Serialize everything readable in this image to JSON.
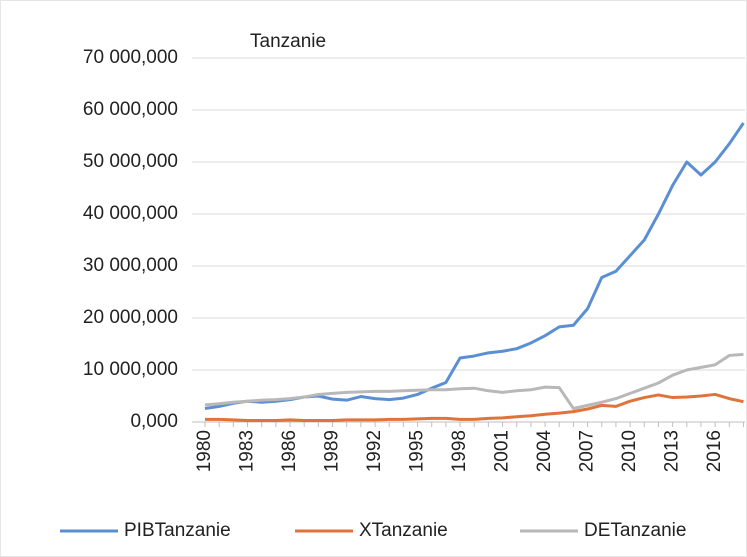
{
  "chart_data": {
    "type": "line",
    "title": "Tanzanie",
    "categories": [
      "1980",
      null,
      null,
      "1983",
      null,
      null,
      "1986",
      null,
      null,
      "1989",
      null,
      null,
      "1992",
      null,
      null,
      "1995",
      null,
      null,
      "1998",
      null,
      null,
      "2001",
      null,
      null,
      "2004",
      null,
      null,
      "2007",
      null,
      null,
      "2010",
      null,
      null,
      "2013",
      null,
      null,
      "2016",
      null,
      null
    ],
    "series": [
      {
        "name": "PIBTanzanie",
        "color": "#5b8fd4",
        "values": [
          2600,
          3000,
          3600,
          4000,
          3800,
          4000,
          4300,
          4800,
          5000,
          4400,
          4200,
          4900,
          4500,
          4300,
          4600,
          5300,
          6500,
          7600,
          12300,
          12700,
          13300,
          13600,
          14100,
          15200,
          16600,
          18300,
          18600,
          21800,
          27800,
          29000,
          32000,
          35000,
          40000,
          45500,
          50000,
          47500,
          50000,
          53500,
          57500
        ]
      },
      {
        "name": "XTanzanie",
        "color": "#e0733a",
        "values": [
          500,
          500,
          400,
          300,
          300,
          300,
          400,
          300,
          300,
          300,
          400,
          400,
          400,
          500,
          500,
          600,
          700,
          700,
          500,
          500,
          700,
          800,
          1000,
          1200,
          1500,
          1700,
          2000,
          2500,
          3200,
          3000,
          4000,
          4700,
          5200,
          4700,
          4800,
          5000,
          5300,
          4500,
          3900
        ]
      },
      {
        "name": "DETanzanie",
        "color": "#b8b8b8",
        "values": [
          3300,
          3500,
          3800,
          4000,
          4200,
          4300,
          4500,
          4800,
          5300,
          5500,
          5700,
          5800,
          5900,
          5900,
          6000,
          6100,
          6200,
          6200,
          6400,
          6500,
          6000,
          5700,
          6000,
          6200,
          6700,
          6600,
          2600,
          3200,
          3800,
          4500,
          5500,
          6500,
          7500,
          9000,
          10000,
          10500,
          11000,
          12800,
          13000
        ]
      }
    ],
    "ylim": [
      0,
      70000
    ],
    "yticks": [
      {
        "value": 0,
        "label": "0,000"
      },
      {
        "value": 10000,
        "label": "10 000,000"
      },
      {
        "value": 20000,
        "label": "20 000,000"
      },
      {
        "value": 30000,
        "label": "30 000,000"
      },
      {
        "value": 40000,
        "label": "40 000,000"
      },
      {
        "value": 50000,
        "label": "50 000,000"
      },
      {
        "value": 60000,
        "label": "60 000,000"
      },
      {
        "value": 70000,
        "label": "70 000,000"
      }
    ],
    "grid": true,
    "legend": "bottom"
  }
}
